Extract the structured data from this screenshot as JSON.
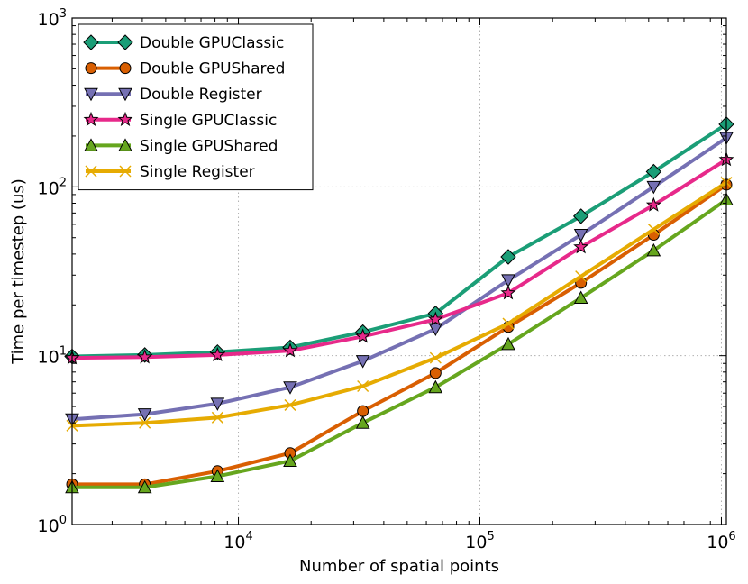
{
  "chart_data": {
    "type": "line",
    "title": "",
    "xlabel": "Number of spatial points",
    "ylabel": "Time per timestep (us)",
    "xscale": "log",
    "yscale": "log",
    "xlim": [
      2048,
      1048576
    ],
    "ylim": [
      1,
      1000
    ],
    "grid": true,
    "legend_position": "top-left",
    "x_ticks": [
      {
        "value": 10000,
        "base": "10",
        "exp": "4"
      },
      {
        "value": 100000,
        "base": "10",
        "exp": "5"
      },
      {
        "value": 1000000,
        "base": "10",
        "exp": "6"
      }
    ],
    "y_ticks": [
      {
        "value": 1,
        "base": "10",
        "exp": "0"
      },
      {
        "value": 10,
        "base": "10",
        "exp": "1"
      },
      {
        "value": 100,
        "base": "10",
        "exp": "2"
      },
      {
        "value": 1000,
        "base": "10",
        "exp": "3"
      }
    ],
    "x": [
      2048,
      4096,
      8192,
      16384,
      32768,
      65536,
      131072,
      262144,
      524288,
      1048576
    ],
    "series": [
      {
        "name": "Double GPUClassic",
        "color": "#1b9e77",
        "marker": "diamond",
        "values": [
          9.9,
          10.1,
          10.5,
          11.2,
          13.8,
          17.8,
          38.5,
          67,
          123,
          235
        ]
      },
      {
        "name": "Double GPUShared",
        "color": "#d95f02",
        "marker": "circle",
        "values": [
          1.73,
          1.73,
          2.07,
          2.65,
          4.7,
          7.9,
          14.8,
          27,
          52,
          103
        ]
      },
      {
        "name": "Double Register",
        "color": "#7570b3",
        "marker": "triangle-down",
        "values": [
          4.2,
          4.5,
          5.2,
          6.5,
          9.3,
          14.4,
          28,
          52,
          100,
          195
        ]
      },
      {
        "name": "Single GPUClassic",
        "color": "#e7298a",
        "marker": "star",
        "values": [
          9.7,
          9.8,
          10.1,
          10.7,
          13.0,
          16.4,
          23.5,
          44,
          78,
          145
        ]
      },
      {
        "name": "Single GPUShared",
        "color": "#66a61e",
        "marker": "triangle-up",
        "values": [
          1.66,
          1.66,
          1.93,
          2.38,
          4.0,
          6.5,
          11.7,
          22,
          42,
          84
        ]
      },
      {
        "name": "Single Register",
        "color": "#e6ab02",
        "marker": "x",
        "values": [
          3.85,
          4.0,
          4.3,
          5.1,
          6.6,
          9.7,
          15.5,
          29.5,
          56,
          106
        ]
      }
    ]
  }
}
